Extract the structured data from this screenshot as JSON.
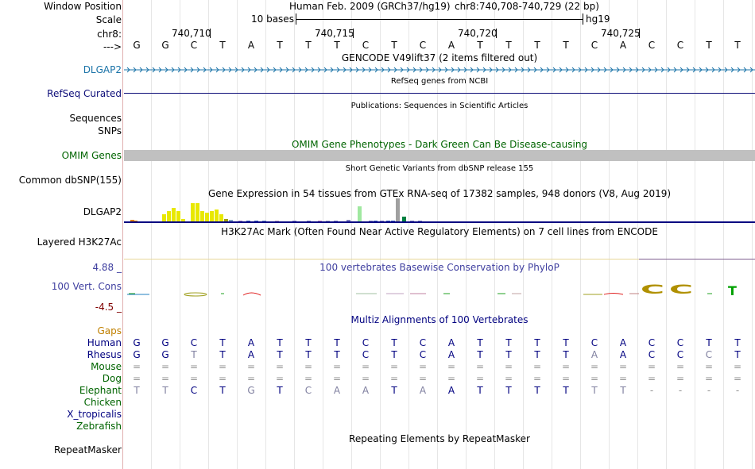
{
  "header": {
    "assembly_text": "Human Feb. 2009 (GRCh37/hg19)",
    "position_text": "chr8:740,708-740,729 (22 bp)",
    "scale_text": "10 bases",
    "scale_db": "hg19",
    "tick_labels": [
      "740,710",
      "740,715",
      "740,720",
      "740,725"
    ],
    "chrom": "chr8:",
    "strand_arrow": "--->"
  },
  "labels": {
    "window_position": "Window Position",
    "scale": "Scale",
    "dlgap2": "DLGAP2",
    "refseq_curated": "RefSeq Curated",
    "sequences": "Sequences",
    "snps": "SNPs",
    "omim_genes": "OMIM Genes",
    "common_dbsnp": "Common dbSNP(155)",
    "dlgap2_gtex": "DLGAP2",
    "layered_h3k27ac": "Layered H3K27Ac",
    "phylop_max": "4.88 _",
    "vert_cons": "100 Vert. Cons",
    "phylop_min": "-4.5 _",
    "gaps": "Gaps",
    "repeatmasker": "RepeatMasker"
  },
  "tracks": {
    "gencode": "GENCODE V49lift37 (2 items filtered out)",
    "refseq": "RefSeq genes from NCBI",
    "publications": "Publications: Sequences in Scientific Articles",
    "omim_pheno": "OMIM Gene Phenotypes - Dark Green Can Be Disease-causing",
    "dbsnp": "Short Genetic Variants from dbSNP release 155",
    "gtex": "Gene Expression in 54 tissues from GTEx RNA-seq of 17382 samples, 948 donors (V8, Aug 2019)",
    "h3k27ac": "H3K27Ac Mark (Often Found Near Active Regulatory Elements) on 7 cell lines from ENCODE",
    "phylop": "100 vertebrates Basewise Conservation by PhyloP",
    "multiz": "Multiz Alignments of 100 Vertebrates",
    "repeatmasker": "Repeating Elements by RepeatMasker"
  },
  "sequence": [
    "G",
    "G",
    "C",
    "T",
    "A",
    "T",
    "T",
    "T",
    "C",
    "T",
    "C",
    "A",
    "T",
    "T",
    "T",
    "T",
    "C",
    "A",
    "C",
    "C",
    "T",
    "T"
  ],
  "alignment": [
    {
      "species": "Human",
      "color": "#000080",
      "bases": [
        "G",
        "G",
        "C",
        "T",
        "A",
        "T",
        "T",
        "T",
        "C",
        "T",
        "C",
        "A",
        "T",
        "T",
        "T",
        "T",
        "C",
        "A",
        "C",
        "C",
        "T",
        "T"
      ]
    },
    {
      "species": "Rhesus",
      "color": "#000080",
      "bases": [
        "G",
        "G",
        "T",
        "T",
        "A",
        "T",
        "T",
        "T",
        "C",
        "T",
        "C",
        "A",
        "T",
        "T",
        "T",
        "T",
        "A",
        "A",
        "C",
        "C",
        "C",
        "T"
      ]
    },
    {
      "species": "Mouse",
      "color": "#006400",
      "bases": [
        "=",
        "=",
        "=",
        "=",
        "=",
        "=",
        "=",
        "=",
        "=",
        "=",
        "=",
        "=",
        "=",
        "=",
        "=",
        "=",
        "=",
        "=",
        "=",
        "=",
        "=",
        "="
      ]
    },
    {
      "species": "Dog",
      "color": "#006400",
      "bases": [
        "=",
        "=",
        "=",
        "=",
        "=",
        "=",
        "=",
        "=",
        "=",
        "=",
        "=",
        "=",
        "=",
        "=",
        "=",
        "=",
        "=",
        "=",
        "=",
        "=",
        "=",
        "="
      ]
    },
    {
      "species": "Elephant",
      "color": "#006400",
      "bases": [
        "T",
        "T",
        "C",
        "T",
        "G",
        "T",
        "C",
        "A",
        "A",
        "T",
        "A",
        "A",
        "T",
        "T",
        "T",
        "T",
        "T",
        "T",
        "-",
        "-",
        "-",
        "-"
      ]
    },
    {
      "species": "Chicken",
      "color": "#006400",
      "bases": []
    },
    {
      "species": "X_tropicalis",
      "color": "#000080",
      "bases": []
    },
    {
      "species": "Zebrafish",
      "color": "#006400",
      "bases": []
    }
  ],
  "colors": {
    "gene_blue": "#1a73a8",
    "refseq_navy": "#0c0c78",
    "omim_green": "#006400",
    "gray": "#c0c0c0",
    "gtex_yellow": "#e8e800",
    "phylop_label": "#4040a0"
  }
}
